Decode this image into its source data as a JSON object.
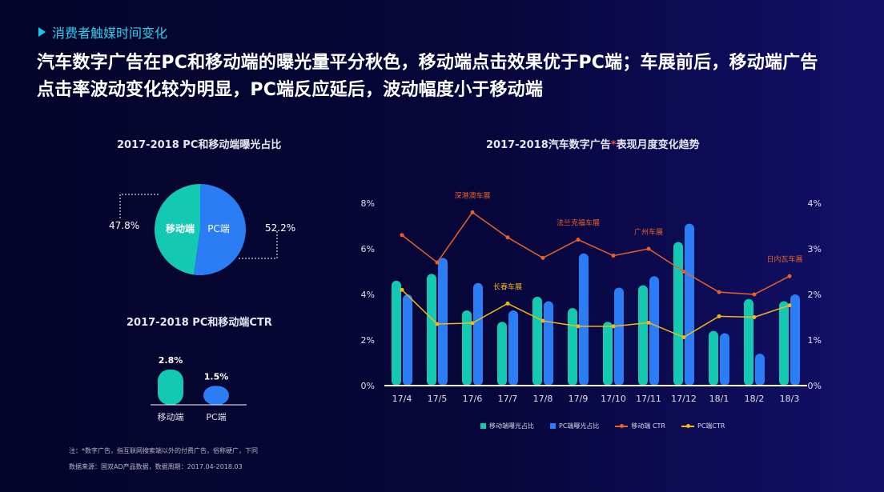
{
  "section": {
    "label": "消费者触媒时间变化"
  },
  "headline": {
    "line1": "汽车数字广告在PC和移动端的曝光量平分秋色，移动端点击效果优于PC端；车展前后，移动端广告",
    "line2": "点击率波动变化较为明显，PC端反应延后，波动幅度小于移动端"
  },
  "colors": {
    "mobile": "#14c9b2",
    "pc": "#2a7df5",
    "mobile_ctr": "#e8612a",
    "pc_ctr": "#f3b71a"
  },
  "chart_data": [
    {
      "type": "pie",
      "title": "2017-2018 PC和移动端曝光占比",
      "slices": [
        {
          "name": "移动端",
          "value": 47.8,
          "label": "47.8%"
        },
        {
          "name": "PC端",
          "value": 52.2,
          "label": "52.2%"
        }
      ]
    },
    {
      "type": "bar",
      "title": "2017-2018 PC和移动端CTR",
      "categories": [
        "移动端",
        "PC端"
      ],
      "values": [
        2.8,
        1.5
      ],
      "value_labels": [
        "2.8%",
        "1.5%"
      ]
    },
    {
      "type": "bar+line",
      "title_prefix": "2017-2018汽车数字广告",
      "title_star": "*",
      "title_suffix": "表现月度变化趋势",
      "categories": [
        "17/4",
        "17/5",
        "17/6",
        "17/7",
        "17/8",
        "17/9",
        "17/10",
        "17/11",
        "17/12",
        "18/1",
        "18/2",
        "18/3"
      ],
      "y_left": {
        "min": 0,
        "max": 8,
        "ticks": [
          "0%",
          "2%",
          "4%",
          "6%",
          "8%"
        ]
      },
      "y_right": {
        "min": 0,
        "max": 4,
        "ticks": [
          "0%",
          "1%",
          "2%",
          "3%",
          "4%"
        ]
      },
      "bars": [
        {
          "name": "移动端曝光占比",
          "axis": "left",
          "values": [
            4.6,
            4.9,
            3.3,
            2.8,
            3.9,
            3.4,
            2.8,
            4.4,
            6.3,
            2.4,
            3.8,
            3.7
          ]
        },
        {
          "name": "PC端曝光占比",
          "axis": "left",
          "values": [
            4.0,
            5.6,
            4.5,
            3.3,
            3.7,
            5.8,
            4.3,
            4.8,
            7.1,
            2.3,
            1.4,
            4.0
          ]
        }
      ],
      "lines": [
        {
          "name": "移动端 CTR",
          "axis": "right",
          "values": [
            3.3,
            2.7,
            3.8,
            3.25,
            2.8,
            3.2,
            2.85,
            3.0,
            2.5,
            2.05,
            2.0,
            2.4
          ]
        },
        {
          "name": "PC端CTR",
          "axis": "right",
          "values": [
            2.1,
            1.35,
            1.37,
            1.8,
            1.42,
            1.3,
            1.3,
            1.38,
            1.06,
            1.52,
            1.5,
            1.76
          ]
        }
      ],
      "annotations": [
        {
          "text": "深港澳车展",
          "category": "17/6",
          "series": "mobile_ctr"
        },
        {
          "text": "长春车展",
          "category": "17/7",
          "series": "pc_ctr"
        },
        {
          "text": "法兰克福车展",
          "category": "17/9",
          "series": "mobile_ctr"
        },
        {
          "text": "广州车展",
          "category": "17/11",
          "series": "mobile_ctr"
        },
        {
          "text": "日内瓦车展",
          "category": "18/3",
          "series": "mobile_ctr"
        }
      ]
    }
  ],
  "legend": [
    {
      "name": "移动端曝光占比",
      "kind": "box",
      "color": "#14c9b2"
    },
    {
      "name": "PC端曝光占比",
      "kind": "box",
      "color": "#2a7df5"
    },
    {
      "name": "移动端 CTR",
      "kind": "line",
      "color": "#e8612a"
    },
    {
      "name": "PC端CTR",
      "kind": "line",
      "color": "#f3b71a"
    }
  ],
  "footnote": {
    "line1": "注：*数字广告，指互联网搜索端以外的付费广告，俗称硬广，下同",
    "line2": "数据来源：国双AD产品数据，数据周期：2017.04-2018.03"
  }
}
